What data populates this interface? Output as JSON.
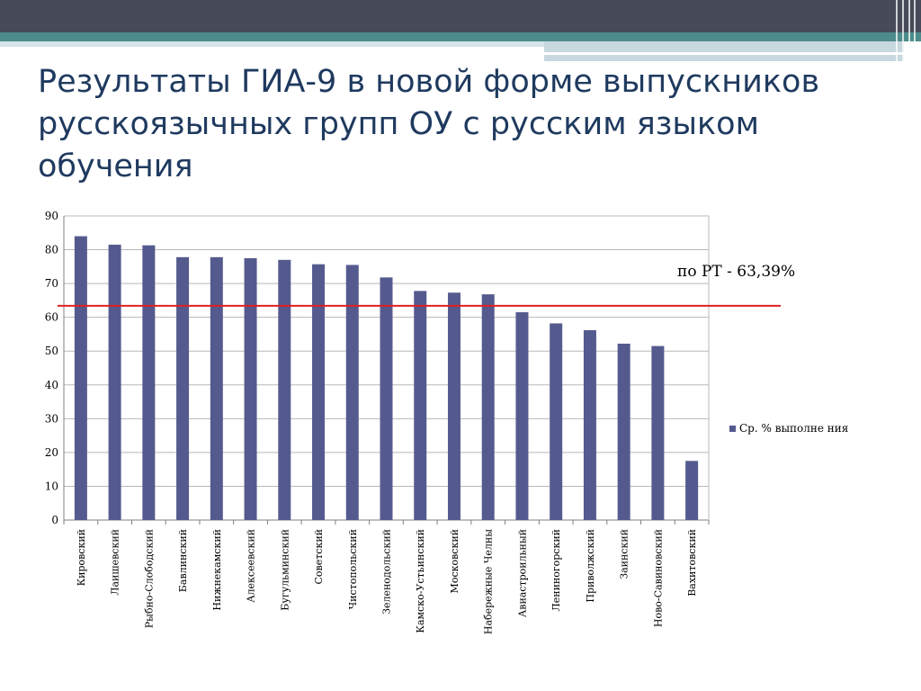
{
  "slide": {
    "title": "Результаты ГИА-9 в новой форме выпускников русскоязычных групп ОУ с русским языком обучения"
  },
  "colors": {
    "header_dark": "#464a59",
    "header_teal": "#4c8c8c",
    "title_text": "#1f3a5f",
    "bar": "#555a8e",
    "reference_line": "#e02020"
  },
  "chart_data": {
    "type": "bar",
    "categories": [
      "Кировский",
      "Лаишевский",
      "Рыбно-Слободский",
      "Бавлинский",
      "Нижнекамский",
      "Алексеевский",
      "Бугульминский",
      "Советский",
      "Чистопольский",
      "Зеленодольский",
      "Камско-Устьинский",
      "Московский",
      "Набережные Челны",
      "Авиастроильный",
      "Лениногорский",
      "Приволжский",
      "Заинский",
      "Ново-Савиновский",
      "Вахитовский"
    ],
    "series": [
      {
        "name": "Ср. % выполне ния",
        "values": [
          84,
          81.5,
          81.3,
          77.8,
          77.8,
          77.5,
          77,
          75.7,
          75.5,
          71.8,
          67.8,
          67.3,
          66.8,
          61.5,
          58.2,
          56.2,
          52.2,
          51.5,
          17.5
        ]
      }
    ],
    "ylim": [
      0,
      90
    ],
    "yticks": [
      0,
      10,
      20,
      30,
      40,
      50,
      60,
      70,
      80,
      90
    ],
    "grid": true,
    "legend_position": "right",
    "reference_line": {
      "value": 63.39,
      "label": "по РТ - 63,39%"
    }
  }
}
